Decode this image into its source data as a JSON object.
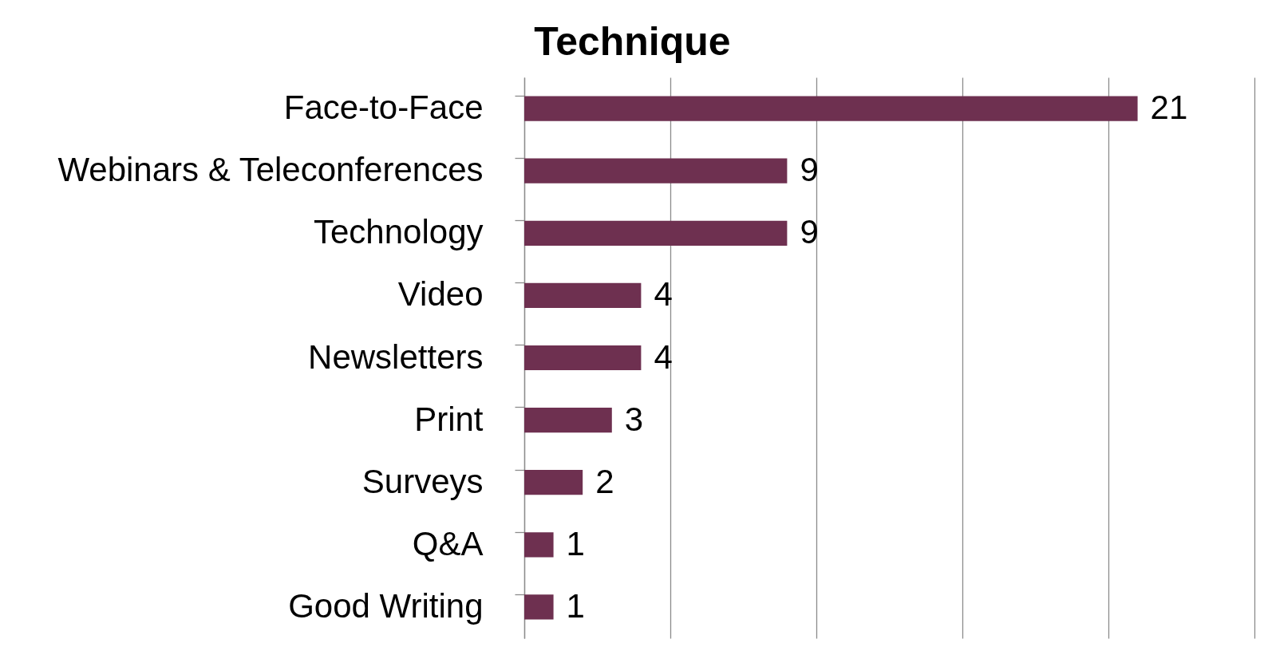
{
  "chart_data": {
    "type": "bar",
    "orientation": "horizontal",
    "title": "Technique",
    "categories": [
      "Face-to-Face",
      "Webinars & Teleconferences",
      "Technology",
      "Video",
      "Newsletters",
      "Print",
      "Surveys",
      "Q&A",
      "Good Writing"
    ],
    "values": [
      21,
      9,
      9,
      4,
      4,
      3,
      2,
      1,
      1
    ],
    "color": "#6e3050",
    "xlim": [
      0,
      25
    ],
    "xticks": [
      {
        "value": 0,
        "label": null
      },
      {
        "value": 5,
        "label": null
      },
      {
        "value": 10,
        "label": null
      },
      {
        "value": 15,
        "label": null
      },
      {
        "value": 20,
        "label": null
      },
      {
        "value": 25,
        "label": null
      }
    ],
    "grid": "x",
    "tick_labels": "y",
    "data_labels": true
  }
}
